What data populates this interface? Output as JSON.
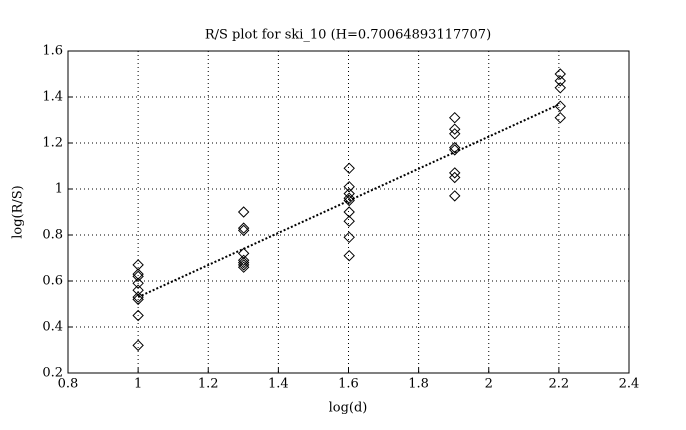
{
  "chart_data": {
    "type": "scatter",
    "title": "R/S plot for ski_10 (H=0.70064893117707)",
    "x_label": "log(d)",
    "y_label": "log(R/S)",
    "x": [
      1,
      1,
      1,
      1,
      1,
      1,
      1,
      1,
      1,
      1.301,
      1.301,
      1.301,
      1.301,
      1.301,
      1.301,
      1.301,
      1.301,
      1.602,
      1.602,
      1.602,
      1.602,
      1.602,
      1.602,
      1.602,
      1.602,
      1.602,
      1.903,
      1.903,
      1.903,
      1.903,
      1.903,
      1.903,
      1.903,
      1.903,
      2.204,
      2.204,
      2.204,
      2.204,
      2.204
    ],
    "values": [
      0.67,
      0.63,
      0.62,
      0.59,
      0.56,
      0.53,
      0.52,
      0.45,
      0.32,
      0.9,
      0.83,
      0.82,
      0.72,
      0.69,
      0.68,
      0.67,
      0.66,
      1.09,
      1.01,
      0.98,
      0.96,
      0.95,
      0.9,
      0.86,
      0.79,
      0.71,
      1.31,
      1.26,
      1.24,
      1.18,
      1.17,
      1.07,
      1.05,
      0.97,
      1.5,
      1.47,
      1.44,
      1.36,
      1.31
    ],
    "color": "#000000",
    "fit": {
      "x": [
        1,
        2.204
      ],
      "values": [
        0.53,
        1.37
      ]
    },
    "xlim": [
      0.8,
      2.4
    ],
    "xticks": [
      0.8,
      1,
      1.2,
      1.4,
      1.6,
      1.8,
      2,
      2.2,
      2.4
    ],
    "ylim": [
      0.2,
      1.6
    ],
    "yticks": [
      0.2,
      0.4,
      0.6,
      0.8,
      1,
      1.2,
      1.4,
      1.6
    ],
    "grid": true
  }
}
